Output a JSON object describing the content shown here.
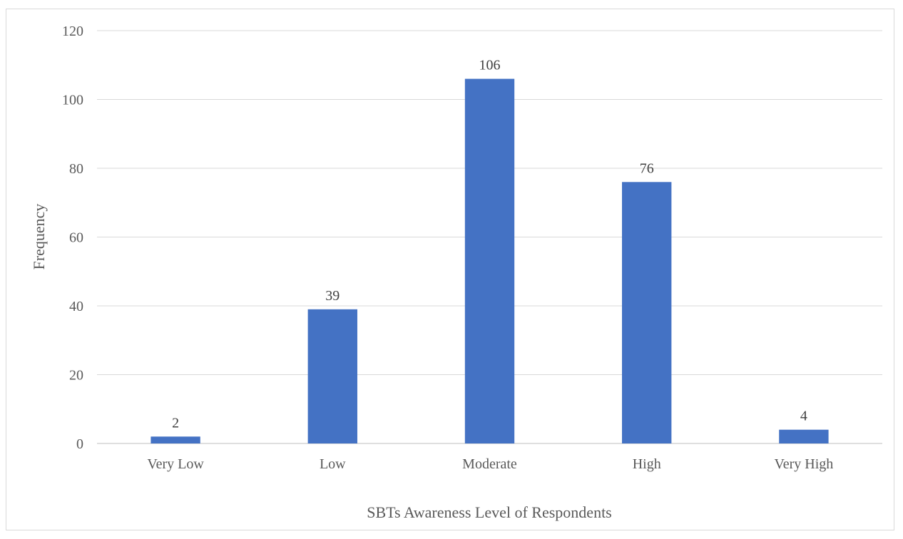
{
  "chart_data": {
    "type": "bar",
    "title": "",
    "xlabel": "SBTs Awareness Level of Respondents",
    "ylabel": "Frequency",
    "categories": [
      "Very Low",
      "Low",
      "Moderate",
      "High",
      "Very High"
    ],
    "values": [
      2,
      39,
      106,
      76,
      4
    ],
    "data_labels": [
      "2",
      "39",
      "106",
      "76",
      "4"
    ],
    "ylim": [
      0,
      120
    ],
    "yticks": [
      0,
      20,
      40,
      60,
      80,
      100,
      120
    ],
    "grid": true,
    "legend": "none",
    "colors": {
      "bar": "#4472c4",
      "grid": "#d9d9d9",
      "text": "#595959"
    }
  }
}
